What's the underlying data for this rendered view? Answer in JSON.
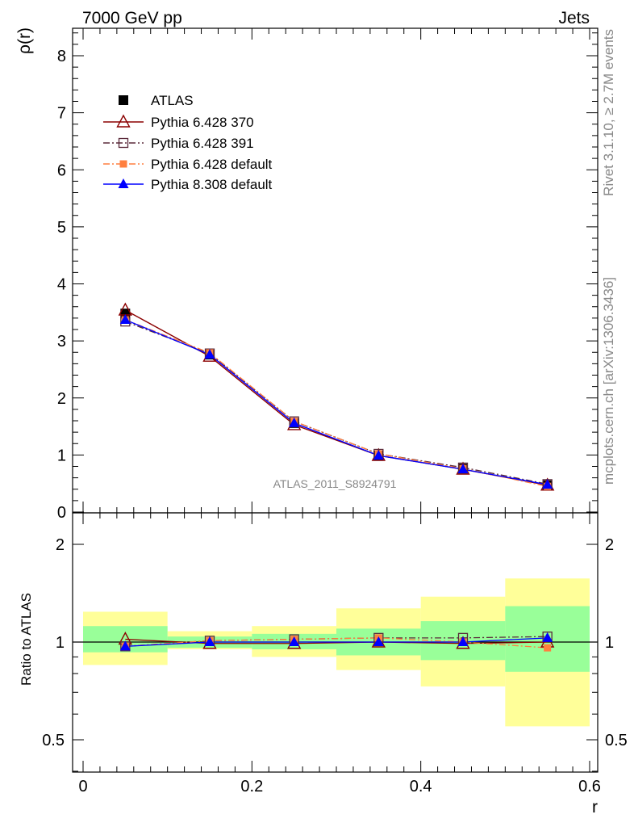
{
  "header": {
    "left": "7000 GeV pp",
    "right": "Jets"
  },
  "side": {
    "rivet": "Rivet 3.1.10, ≥ 2.7M events",
    "mcplots": "mcplots.cern.ch [arXiv:1306.3436]"
  },
  "watermark": "ATLAS_2011_S8924791",
  "colors": {
    "atlas": "#000000",
    "py370": "#8b0000",
    "py391": "#5a2a3a",
    "py6def": "#ff7f3f",
    "py8def": "#0000ff",
    "band_inner": "#99ff99",
    "band_outer": "#ffff99"
  },
  "chart_data": [
    {
      "type": "line",
      "ylabel": "ρ(r)",
      "xlim": [
        0,
        0.6
      ],
      "ylim": [
        0,
        8.5
      ],
      "yticks": [
        0,
        1,
        2,
        3,
        4,
        5,
        6,
        7,
        8
      ],
      "x": [
        0.05,
        0.15,
        0.25,
        0.35,
        0.45,
        0.55
      ],
      "legend_position": "top-left",
      "series": [
        {
          "name": "ATLAS",
          "marker": "filled-square",
          "values": [
            3.48,
            2.76,
            1.56,
            0.99,
            0.76,
            0.47
          ]
        },
        {
          "name": "Pythia 6.428 370",
          "marker": "open-triangle",
          "line": "solid",
          "values": [
            3.54,
            2.73,
            1.53,
            0.99,
            0.75,
            0.47
          ]
        },
        {
          "name": "Pythia 6.428 391",
          "marker": "open-square",
          "line": "dash-dot",
          "values": [
            3.34,
            2.78,
            1.59,
            1.02,
            0.78,
            0.49
          ]
        },
        {
          "name": "Pythia 6.428 default",
          "marker": "filled-square-small",
          "line": "dash-dot",
          "values": [
            3.37,
            2.79,
            1.59,
            1.02,
            0.76,
            0.45
          ]
        },
        {
          "name": "Pythia 8.308 default",
          "marker": "filled-triangle",
          "line": "solid",
          "values": [
            3.37,
            2.76,
            1.56,
            0.99,
            0.75,
            0.48
          ]
        }
      ]
    },
    {
      "type": "line",
      "xlabel": "r",
      "ylabel": "Ratio to ATLAS",
      "log_y": true,
      "xlim": [
        0,
        0.6
      ],
      "ylim": [
        0.4,
        2.4
      ],
      "xticks": [
        0,
        0.2,
        0.4,
        0.6
      ],
      "ytick_labels": [
        "0.5",
        "1",
        "2"
      ],
      "bin_edges": [
        0,
        0.1,
        0.2,
        0.3,
        0.4,
        0.5,
        0.6
      ],
      "band_inner": [
        [
          0.93,
          1.12
        ],
        [
          0.96,
          1.04
        ],
        [
          0.95,
          1.06
        ],
        [
          0.91,
          1.1
        ],
        [
          0.88,
          1.16
        ],
        [
          0.81,
          1.29
        ]
      ],
      "band_outer": [
        [
          0.85,
          1.24
        ],
        [
          0.95,
          1.08
        ],
        [
          0.9,
          1.12
        ],
        [
          0.82,
          1.27
        ],
        [
          0.73,
          1.38
        ],
        [
          0.55,
          1.57
        ]
      ],
      "x": [
        0.05,
        0.15,
        0.25,
        0.35,
        0.45,
        0.55
      ],
      "series": [
        {
          "name": "Pythia 6.428 370",
          "values": [
            1.02,
            0.99,
            0.99,
            1.0,
            0.99,
            1.0
          ]
        },
        {
          "name": "Pythia 6.428 391",
          "values": [
            0.97,
            1.01,
            1.02,
            1.03,
            1.03,
            1.04
          ]
        },
        {
          "name": "Pythia 6.428 default",
          "values": [
            0.97,
            1.01,
            1.02,
            1.03,
            1.0,
            0.96
          ]
        },
        {
          "name": "Pythia 8.308 default",
          "values": [
            0.97,
            1.0,
            1.0,
            1.0,
            1.0,
            1.03
          ]
        }
      ]
    }
  ]
}
